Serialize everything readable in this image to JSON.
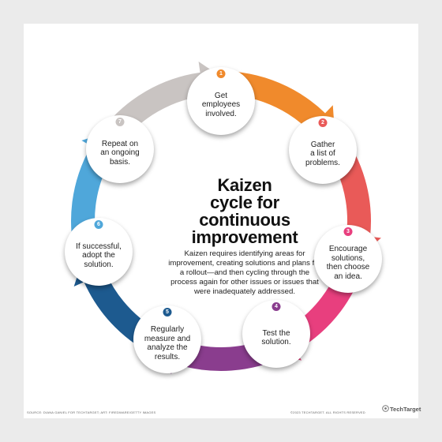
{
  "title": "Kaizen\ncycle for\ncontinuous\nimprovement",
  "description": "Kaizen requires identifying areas for improvement, creating solutions and plans for a rollout—and then cycling through the process again for other issues or issues that were inadequately addressed.",
  "steps": [
    {
      "number": "1",
      "text": "Get\nemployees\ninvolved.",
      "color": "#f08a2c"
    },
    {
      "number": "2",
      "text": "Gather\na list of\nproblems.",
      "color": "#e95a58"
    },
    {
      "number": "3",
      "text": "Encourage\nsolutions,\nthen choose\nan idea.",
      "color": "#e83f7e"
    },
    {
      "number": "4",
      "text": "Test the\nsolution.",
      "color": "#8a3d8e"
    },
    {
      "number": "5",
      "text": "Regularly\nmeasure and\nanalyze the\nresults.",
      "color": "#1d5a8f"
    },
    {
      "number": "6",
      "text": "If successful,\nadopt the\nsolution.",
      "color": "#4fa7da"
    },
    {
      "number": "7",
      "text": "Repeat on\nan ongoing\nbasis.",
      "color": "#c9c4c2"
    }
  ],
  "footer": {
    "source": "SOURCE: DIANA GANIEL FOR TECHTARGET; ART: FIREDWARE/GETTY IMAGES",
    "copyright": "©2023 TECHTARGET. ALL RIGHTS RESERVED",
    "brand": "TechTarget"
  }
}
